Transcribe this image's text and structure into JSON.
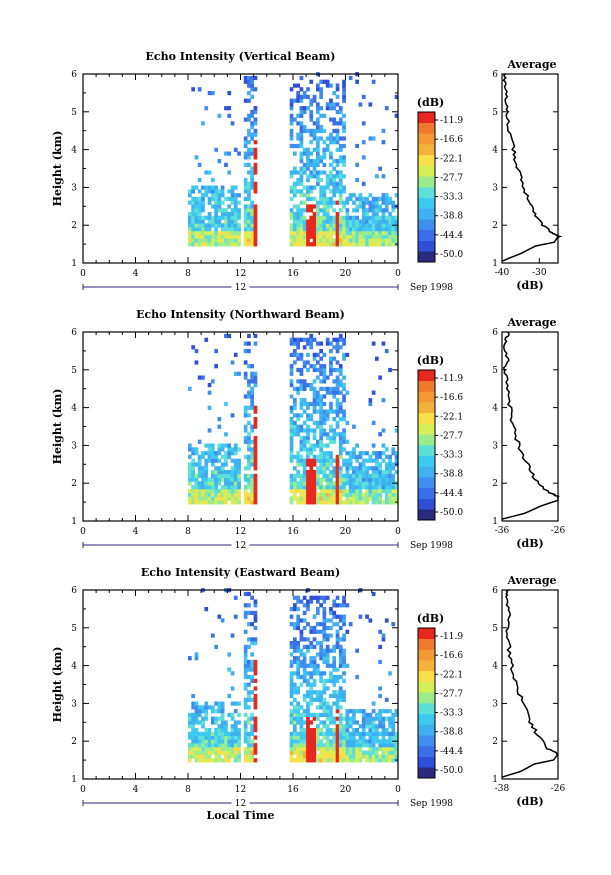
{
  "chart_data": [
    {
      "type": "heatmap",
      "title": "Echo Intensity (Vertical Beam)",
      "ylabel": "Height (km)",
      "xticks": [
        "0",
        "4",
        "8",
        "12",
        "16",
        "20",
        "0"
      ],
      "xlim": [
        0,
        24
      ],
      "ylim": [
        1,
        6
      ],
      "yticks": [
        "1",
        "2",
        "3",
        "4",
        "5",
        "6"
      ],
      "date_label": "12",
      "date_suffix": "Sep 1998",
      "colorbar": {
        "unit": "(dB)",
        "ticks": [
          "-11.9",
          "-16.6",
          "-22.1",
          "-27.7",
          "-33.3",
          "-38.8",
          "-44.4",
          "-50.0"
        ]
      },
      "profile": {
        "title": "Average",
        "xlabel": "(dB)",
        "xticks": [
          "-40",
          "-30"
        ],
        "xlim": [
          -40,
          -25
        ],
        "yticks": [
          "1",
          "2",
          "3",
          "4",
          "5",
          "6"
        ],
        "ylim": [
          1,
          6
        ],
        "x": [
          -40,
          -35,
          -31,
          -26,
          -25,
          -27,
          -29,
          -31,
          -33,
          -35,
          -36,
          -37,
          -38,
          -38.5,
          -39,
          -39.5,
          -39
        ],
        "y": [
          1.05,
          1.25,
          1.45,
          1.55,
          1.7,
          1.8,
          2.0,
          2.3,
          2.7,
          3.2,
          3.6,
          4.0,
          4.5,
          5.0,
          5.4,
          5.8,
          6.0
        ]
      }
    },
    {
      "type": "heatmap",
      "title": "Echo Intensity (Northward Beam)",
      "ylabel": "Height (km)",
      "xticks": [
        "0",
        "4",
        "8",
        "12",
        "16",
        "20",
        "0"
      ],
      "xlim": [
        0,
        24
      ],
      "ylim": [
        1,
        6
      ],
      "yticks": [
        "1",
        "2",
        "3",
        "4",
        "5",
        "6"
      ],
      "date_label": "12",
      "date_suffix": "Sep 1998",
      "colorbar": {
        "unit": "(dB)",
        "ticks": [
          "-11.9",
          "-16.6",
          "-22.1",
          "-27.7",
          "-33.3",
          "-38.8",
          "-44.4",
          "-50.0"
        ]
      },
      "profile": {
        "title": "Average",
        "xlabel": "(dB)",
        "xticks": [
          "-36",
          "-26"
        ],
        "xlim": [
          -36,
          -26
        ],
        "yticks": [
          "1",
          "2",
          "3",
          "4",
          "5",
          "6"
        ],
        "ylim": [
          1,
          6
        ],
        "x": [
          -36,
          -32,
          -29,
          -26,
          -26,
          -28,
          -30,
          -31.5,
          -33,
          -34,
          -34.5,
          -35,
          -35.5,
          -35,
          -35.5,
          -35
        ],
        "y": [
          1.05,
          1.2,
          1.4,
          1.55,
          1.65,
          1.8,
          2.1,
          2.5,
          3.0,
          3.5,
          4.0,
          4.5,
          5.0,
          5.3,
          5.7,
          6.0
        ]
      }
    },
    {
      "type": "heatmap",
      "title": "Echo Intensity (Eastward Beam)",
      "ylabel": "Height (km)",
      "xlabel": "Local Time",
      "xticks": [
        "0",
        "4",
        "8",
        "12",
        "16",
        "20",
        "0"
      ],
      "xlim": [
        0,
        24
      ],
      "ylim": [
        1,
        6
      ],
      "yticks": [
        "1",
        "2",
        "3",
        "4",
        "5",
        "6"
      ],
      "date_label": "12",
      "date_suffix": "Sep 1998",
      "colorbar": {
        "unit": "(dB)",
        "ticks": [
          "-11.9",
          "-16.6",
          "-22.1",
          "-27.7",
          "-33.3",
          "-38.8",
          "-44.4",
          "-50.0"
        ]
      },
      "profile": {
        "title": "Average",
        "xlabel": "(dB)",
        "xticks": [
          "-38",
          "-26"
        ],
        "xlim": [
          -38,
          -26
        ],
        "yticks": [
          "1",
          "2",
          "3",
          "4",
          "5",
          "6"
        ],
        "ylim": [
          1,
          6
        ],
        "x": [
          -38,
          -34,
          -31,
          -27,
          -26,
          -28,
          -30,
          -32,
          -33.5,
          -35,
          -36,
          -36.5,
          -37,
          -36.5,
          -37,
          -36.5
        ],
        "y": [
          1.05,
          1.2,
          1.4,
          1.5,
          1.65,
          1.8,
          2.1,
          2.5,
          3.0,
          3.5,
          4.0,
          4.5,
          5.0,
          5.4,
          5.8,
          6.0
        ]
      }
    }
  ]
}
